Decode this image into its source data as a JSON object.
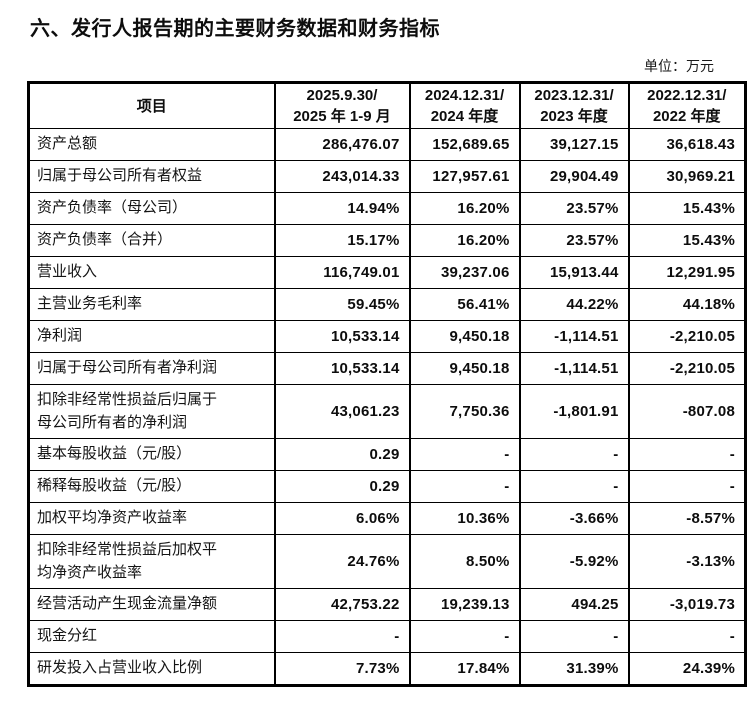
{
  "title": "六、发行人报告期的主要财务数据和财务指标",
  "unit_label": "单位：万元",
  "colors": {
    "text": "#111111",
    "border": "#000000",
    "background": "#ffffff"
  },
  "table": {
    "columns": [
      "项目",
      "2025.9.30/\n2025 年 1-9 月",
      "2024.12.31/\n2024 年度",
      "2023.12.31/\n2023 年度",
      "2022.12.31/\n2022 年度"
    ],
    "rows": [
      {
        "label": "资产总额",
        "values": [
          "286,476.07",
          "152,689.65",
          "39,127.15",
          "36,618.43"
        ]
      },
      {
        "label": "归属于母公司所有者权益",
        "values": [
          "243,014.33",
          "127,957.61",
          "29,904.49",
          "30,969.21"
        ]
      },
      {
        "label": "资产负债率（母公司）",
        "values": [
          "14.94%",
          "16.20%",
          "23.57%",
          "15.43%"
        ]
      },
      {
        "label": "资产负债率（合并）",
        "values": [
          "15.17%",
          "16.20%",
          "23.57%",
          "15.43%"
        ]
      },
      {
        "label": "营业收入",
        "values": [
          "116,749.01",
          "39,237.06",
          "15,913.44",
          "12,291.95"
        ]
      },
      {
        "label": "主营业务毛利率",
        "values": [
          "59.45%",
          "56.41%",
          "44.22%",
          "44.18%"
        ]
      },
      {
        "label": "净利润",
        "values": [
          "10,533.14",
          "9,450.18",
          "-1,114.51",
          "-2,210.05"
        ]
      },
      {
        "label": "归属于母公司所有者净利润",
        "values": [
          "10,533.14",
          "9,450.18",
          "-1,114.51",
          "-2,210.05"
        ]
      },
      {
        "label": "扣除非经常性损益后归属于\n母公司所有者的净利润",
        "values": [
          "43,061.23",
          "7,750.36",
          "-1,801.91",
          "-807.08"
        ]
      },
      {
        "label": "基本每股收益（元/股）",
        "values": [
          "0.29",
          "-",
          "-",
          "-"
        ]
      },
      {
        "label": "稀释每股收益（元/股）",
        "values": [
          "0.29",
          "-",
          "-",
          "-"
        ]
      },
      {
        "label": "加权平均净资产收益率",
        "values": [
          "6.06%",
          "10.36%",
          "-3.66%",
          "-8.57%"
        ]
      },
      {
        "label": "扣除非经常性损益后加权平\n均净资产收益率",
        "values": [
          "24.76%",
          "8.50%",
          "-5.92%",
          "-3.13%"
        ]
      },
      {
        "label": "经营活动产生现金流量净额",
        "values": [
          "42,753.22",
          "19,239.13",
          "494.25",
          "-3,019.73"
        ]
      },
      {
        "label": "现金分红",
        "values": [
          "-",
          "-",
          "-",
          "-"
        ]
      },
      {
        "label": "研发投入占营业收入比例",
        "values": [
          "7.73%",
          "17.84%",
          "31.39%",
          "24.39%"
        ]
      }
    ]
  }
}
